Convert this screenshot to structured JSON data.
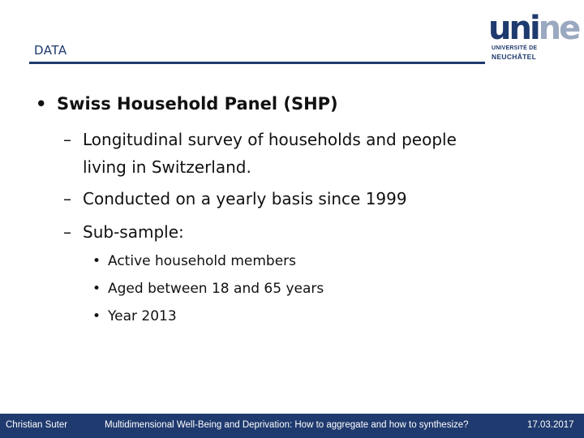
{
  "header": {
    "section_label": "DATA",
    "logo": {
      "word_main": "uni",
      "word_tail": "ne",
      "line1": "UNIVERSITÉ DE",
      "line2": "NEUCHÂTEL"
    }
  },
  "content": {
    "level1": {
      "bullet": "•",
      "text": "Swiss Household Panel (SHP)"
    },
    "level2": [
      {
        "dash": "–",
        "text": "Longitudinal survey of households and people",
        "continuation": "living in Switzerland."
      },
      {
        "dash": "–",
        "text": "Conducted on a yearly basis since 1999"
      },
      {
        "dash": "–",
        "text": "Sub-sample:"
      }
    ],
    "level3": [
      {
        "bullet": "•",
        "text": "Active household members"
      },
      {
        "bullet": "•",
        "text": "Aged between 18 and 65 years"
      },
      {
        "bullet": "•",
        "text": "Year 2013"
      }
    ]
  },
  "footer": {
    "author": "Christian Suter",
    "title": "Multidimensional Well-Being and Deprivation: How to aggregate and how to synthesize?",
    "date": "17.03.2017"
  },
  "colors": {
    "brand": "#1f3a6e",
    "logo_tail": "#9aa8c0",
    "text": "#111111"
  }
}
